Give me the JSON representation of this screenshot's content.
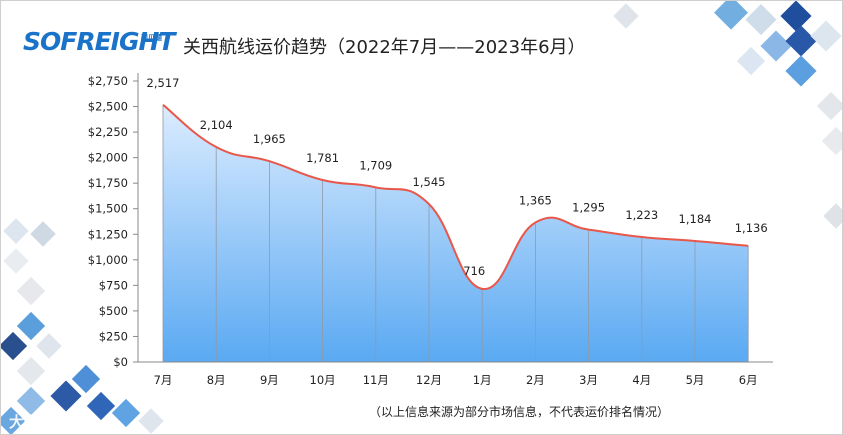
{
  "logo": {
    "text": "SOFREIGHT",
    "sub": "硕贝德"
  },
  "watermark": "大数跨境",
  "footnote": "（以上信息来源为部分市场信息，不代表运价排名情况）",
  "colors": {
    "line": "#e8574a",
    "area_top": "#dcecff",
    "area_bottom": "#5aa9f2",
    "logo": "#1a73c8"
  },
  "chart_data": {
    "type": "area",
    "title": "关西航线运价趋势（2022年7月——2023年6月）",
    "xlabel": "",
    "ylabel": "",
    "categories": [
      "7月",
      "8月",
      "9月",
      "10月",
      "11月",
      "12月",
      "1月",
      "2月",
      "3月",
      "4月",
      "5月",
      "6月"
    ],
    "values": [
      2517,
      2104,
      1965,
      1781,
      1709,
      1545,
      716,
      1365,
      1295,
      1223,
      1184,
      1136
    ],
    "data_labels": [
      "2,517",
      "2,104",
      "1,965",
      "1,781",
      "1,709",
      "1,545",
      "716",
      "1,365",
      "1,295",
      "1,223",
      "1,184",
      "1,136"
    ],
    "ylim": [
      0,
      2750
    ],
    "yticks": [
      0,
      250,
      500,
      750,
      1000,
      1250,
      1500,
      1750,
      2000,
      2250,
      2500,
      2750
    ],
    "ytick_labels": [
      "$0",
      "$250",
      "$500",
      "$750",
      "$1,000",
      "$1,250",
      "$1,500",
      "$1,750",
      "$2,000",
      "$2,250",
      "$2,500",
      "$2,750"
    ],
    "grid": false,
    "smooth": true,
    "legend": "none"
  }
}
